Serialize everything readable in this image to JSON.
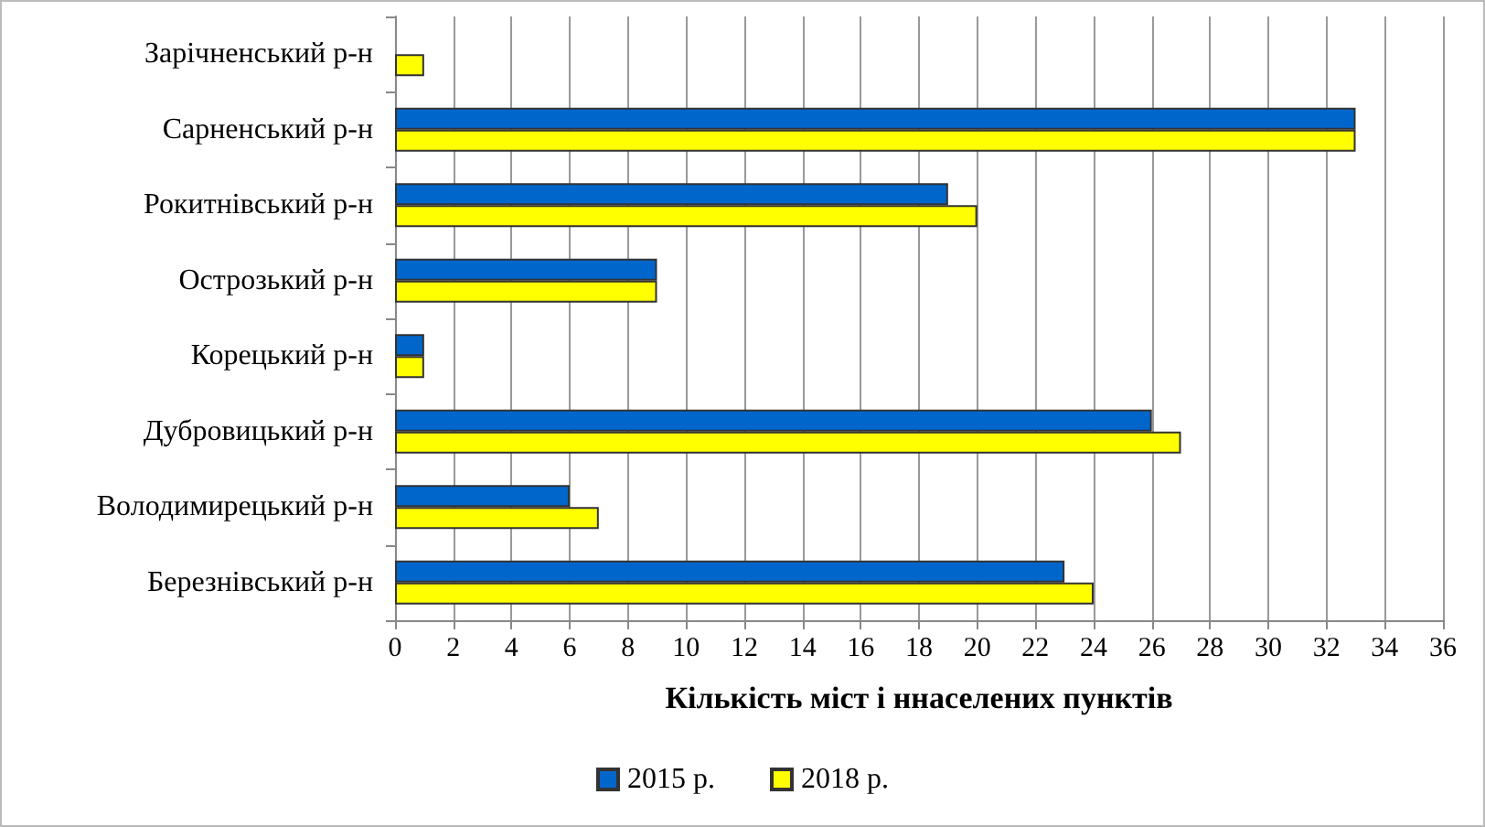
{
  "chart_data": {
    "type": "bar",
    "orientation": "horizontal",
    "xlabel": "Кількість міст і ннаселених пунктів",
    "categories": [
      "Зарічненський р-н",
      "Сарненський р-н",
      "Рокитнівський р-н",
      "Острозький р-н",
      "Корецький р-н",
      "Дубровицький р-н",
      "Володимирецький р-н",
      "Березнівський р-н"
    ],
    "series": [
      {
        "name": "2015 р.",
        "color": "#0066cc",
        "values": [
          null,
          33,
          19,
          9,
          1,
          26,
          6,
          23
        ]
      },
      {
        "name": "2018 р.",
        "color": "#ffff00",
        "values": [
          1,
          33,
          20,
          9,
          1,
          27,
          7,
          24
        ]
      }
    ],
    "xlim": [
      0,
      36
    ],
    "xticks": [
      0,
      2,
      4,
      6,
      8,
      10,
      12,
      14,
      16,
      18,
      20,
      22,
      24,
      26,
      28,
      30,
      32,
      34,
      36
    ],
    "grid": "x",
    "legend": "bottom"
  }
}
